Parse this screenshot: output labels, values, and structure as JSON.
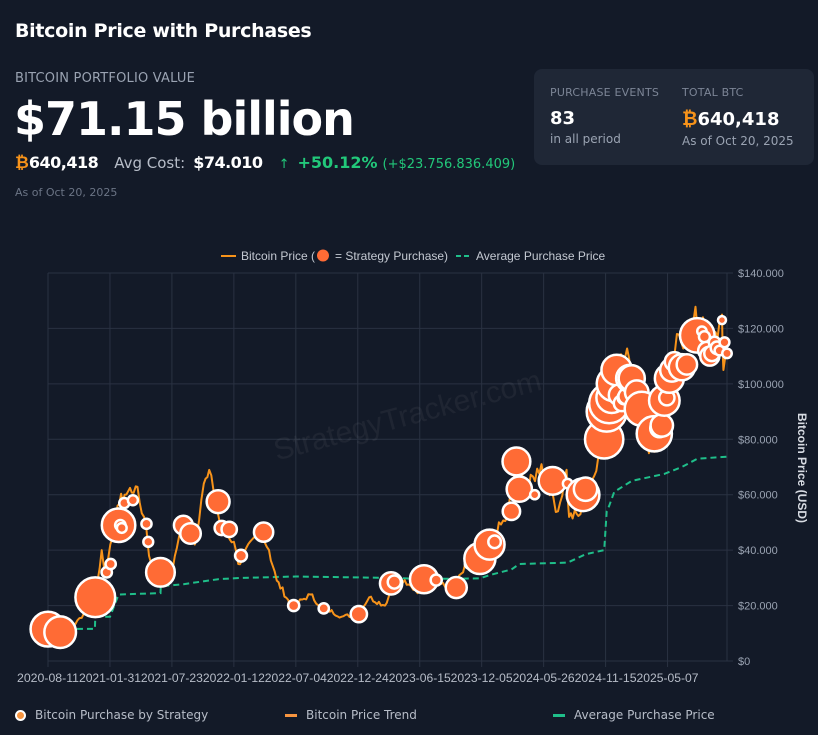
{
  "header": {
    "title": "Bitcoin Price with Purchases",
    "portfolio_label": "BITCOIN PORTFOLIO VALUE",
    "portfolio_value": "$71.15 billion",
    "btc_symbol": "₿",
    "btc_amount": "640,418",
    "avg_cost_label": "Avg Cost:",
    "avg_cost_value": "$74.010",
    "gain_arrow": "↑",
    "gain_percent": "+50.12%",
    "gain_absolute": "(+$23.756.836.409)",
    "as_of": "As of Oct 20, 2025"
  },
  "summary_card": {
    "events_label": "PURCHASE EVENTS",
    "events_value": "83",
    "events_note": "in all period",
    "total_label": "TOTAL BTC",
    "total_symbol": "₿",
    "total_value": "640,418",
    "total_note": "As of Oct 20, 2025"
  },
  "bottom_legend": {
    "purchase": "Bitcoin Purchase by Strategy",
    "trend": "Bitcoin Price Trend",
    "average": "Average Purchase Price"
  },
  "colors": {
    "background": "#131a28",
    "price_line": "#f7931a",
    "purchase_fill": "#ff6b35",
    "average_line": "#1fbf8a",
    "grid": "#2a3242",
    "positive": "#22c87a"
  },
  "chart_data": {
    "type": "line",
    "title": "",
    "legend": {
      "price": "Bitcoin Price (",
      "purchase_eq": "= Strategy Purchase)",
      "average": "Average Purchase Price",
      "placement": "top-center"
    },
    "watermark": "StrategyTracker.com",
    "xlabel": "",
    "ylabel": "Bitcoin Price (USD)",
    "x_ticks": [
      "2020-08-11",
      "2021-01-31",
      "2021-07-23",
      "2022-01-12",
      "2022-07-04",
      "2022-12-24",
      "2023-06-15",
      "2023-12-05",
      "2024-05-26",
      "2024-11-15",
      "2025-05-07"
    ],
    "x_range": [
      "2020-08-11",
      "2025-10-20"
    ],
    "y_ticks": [
      0,
      20000,
      40000,
      60000,
      80000,
      100000,
      120000,
      140000
    ],
    "y_tick_labels": [
      "$0",
      "$20.000",
      "$40.000",
      "$60.000",
      "$80.000",
      "$100.000",
      "$120.000",
      "$140.000"
    ],
    "ylim": [
      0,
      140000
    ],
    "grid": true,
    "price_series": [
      [
        "2020-08-11",
        11500
      ],
      [
        "2020-09-15",
        10500
      ],
      [
        "2020-10-20",
        12500
      ],
      [
        "2020-11-25",
        18000
      ],
      [
        "2020-12-21",
        23000
      ],
      [
        "2021-01-08",
        40000
      ],
      [
        "2021-01-20",
        31000
      ],
      [
        "2021-02-08",
        45000
      ],
      [
        "2021-02-21",
        56000
      ],
      [
        "2021-03-13",
        60000
      ],
      [
        "2021-04-13",
        63000
      ],
      [
        "2021-05-12",
        49000
      ],
      [
        "2021-05-20",
        38000
      ],
      [
        "2021-06-22",
        31000
      ],
      [
        "2021-07-20",
        30000
      ],
      [
        "2021-08-12",
        45000
      ],
      [
        "2021-09-06",
        51000
      ],
      [
        "2021-09-25",
        42000
      ],
      [
        "2021-10-20",
        64000
      ],
      [
        "2021-11-10",
        67000
      ],
      [
        "2021-12-05",
        49000
      ],
      [
        "2022-01-12",
        43000
      ],
      [
        "2022-01-24",
        35000
      ],
      [
        "2022-03-28",
        47000
      ],
      [
        "2022-04-20",
        40000
      ],
      [
        "2022-05-12",
        29000
      ],
      [
        "2022-06-13",
        22000
      ],
      [
        "2022-06-18",
        19000
      ],
      [
        "2022-08-14",
        24000
      ],
      [
        "2022-09-10",
        20000
      ],
      [
        "2022-11-09",
        16000
      ],
      [
        "2022-12-24",
        16800
      ],
      [
        "2023-01-25",
        23000
      ],
      [
        "2023-03-10",
        20000
      ],
      [
        "2023-04-14",
        30500
      ],
      [
        "2023-05-10",
        27500
      ],
      [
        "2023-06-15",
        25000
      ],
      [
        "2023-07-12",
        31000
      ],
      [
        "2023-09-11",
        25000
      ],
      [
        "2023-10-25",
        34500
      ],
      [
        "2023-12-05",
        43000
      ],
      [
        "2024-01-10",
        46000
      ],
      [
        "2024-02-15",
        52000
      ],
      [
        "2024-03-13",
        73000
      ],
      [
        "2024-04-15",
        63000
      ],
      [
        "2024-05-20",
        71000
      ],
      [
        "2024-07-05",
        54000
      ],
      [
        "2024-07-29",
        69000
      ],
      [
        "2024-08-05",
        52000
      ],
      [
        "2024-09-06",
        53000
      ],
      [
        "2024-10-15",
        67000
      ],
      [
        "2024-11-11",
        88000
      ],
      [
        "2024-11-22",
        99000
      ],
      [
        "2024-12-17",
        108000
      ],
      [
        "2025-01-20",
        109000
      ],
      [
        "2025-02-28",
        80000
      ],
      [
        "2025-04-08",
        76000
      ],
      [
        "2025-05-22",
        111000
      ],
      [
        "2025-07-14",
        122000
      ],
      [
        "2025-08-14",
        124000
      ],
      [
        "2025-09-01",
        108000
      ],
      [
        "2025-10-06",
        125000
      ],
      [
        "2025-10-10",
        105000
      ],
      [
        "2025-10-20",
        110000
      ]
    ],
    "purchases": [
      [
        "2020-08-11",
        11500,
        21454
      ],
      [
        "2020-09-14",
        10400,
        16796
      ],
      [
        "2020-12-21",
        23000,
        29646
      ],
      [
        "2021-01-22",
        32000,
        314
      ],
      [
        "2021-02-02",
        35000,
        295
      ],
      [
        "2021-02-24",
        49000,
        19452
      ],
      [
        "2021-03-01",
        49000,
        328
      ],
      [
        "2021-03-05",
        48000,
        205
      ],
      [
        "2021-03-12",
        57000,
        262
      ],
      [
        "2021-04-05",
        58000,
        253
      ],
      [
        "2021-05-13",
        49500,
        271
      ],
      [
        "2021-05-18",
        43000,
        229
      ],
      [
        "2021-06-21",
        32000,
        13005
      ],
      [
        "2021-08-24",
        49000,
        3907
      ],
      [
        "2021-09-13",
        46000,
        5050
      ],
      [
        "2021-11-29",
        57500,
        7002
      ],
      [
        "2021-12-09",
        48000,
        1434
      ],
      [
        "2021-12-30",
        47500,
        1914
      ],
      [
        "2022-02-01",
        38000,
        660
      ],
      [
        "2022-04-05",
        46500,
        4167
      ],
      [
        "2022-06-28",
        20000,
        480
      ],
      [
        "2022-09-20",
        19000,
        301
      ],
      [
        "2022-12-27",
        16900,
        2395
      ],
      [
        "2023-03-27",
        28000,
        6455
      ],
      [
        "2023-04-05",
        28500,
        1045
      ],
      [
        "2023-06-27",
        29500,
        12333
      ],
      [
        "2023-07-31",
        29200,
        467
      ],
      [
        "2023-09-25",
        26500,
        5445
      ],
      [
        "2023-11-01",
        35000,
        155
      ],
      [
        "2023-11-30",
        37000,
        16130
      ],
      [
        "2023-12-27",
        42000,
        14620
      ],
      [
        "2024-01-10",
        43000,
        850
      ],
      [
        "2024-02-26",
        54000,
        3000
      ],
      [
        "2024-03-11",
        72000,
        12000
      ],
      [
        "2024-03-19",
        62000,
        9245
      ],
      [
        "2024-05-01",
        60000,
        122
      ],
      [
        "2024-06-20",
        65000,
        11931
      ],
      [
        "2024-08-01",
        64000,
        169
      ],
      [
        "2024-09-13",
        60000,
        18300
      ],
      [
        "2024-09-20",
        62000,
        7420
      ],
      [
        "2024-11-11",
        80000,
        27200
      ],
      [
        "2024-11-18",
        90000,
        51780
      ],
      [
        "2024-11-25",
        93000,
        55500
      ],
      [
        "2024-12-02",
        95000,
        15400
      ],
      [
        "2024-12-09",
        100000,
        21550
      ],
      [
        "2024-12-16",
        105000,
        15350
      ],
      [
        "2024-12-23",
        96000,
        5262
      ],
      [
        "2024-12-30",
        93000,
        2138
      ],
      [
        "2025-01-06",
        95000,
        1070
      ],
      [
        "2025-01-13",
        95500,
        2530
      ],
      [
        "2025-01-21",
        102000,
        11000
      ],
      [
        "2025-01-27",
        102000,
        10107
      ],
      [
        "2025-02-10",
        97000,
        7633
      ],
      [
        "2025-02-24",
        91000,
        20356
      ],
      [
        "2025-03-17",
        83000,
        130
      ],
      [
        "2025-03-24",
        84000,
        6911
      ],
      [
        "2025-03-31",
        82000,
        22048
      ],
      [
        "2025-04-14",
        84000,
        3459
      ],
      [
        "2025-04-21",
        85000,
        6556
      ],
      [
        "2025-04-28",
        94000,
        15355
      ],
      [
        "2025-05-05",
        95000,
        1895
      ],
      [
        "2025-05-12",
        102000,
        13390
      ],
      [
        "2025-05-19",
        105000,
        7390
      ],
      [
        "2025-05-26",
        108000,
        4020
      ],
      [
        "2025-06-02",
        106000,
        705
      ],
      [
        "2025-06-09",
        107000,
        1045
      ],
      [
        "2025-06-16",
        106000,
        10100
      ],
      [
        "2025-06-23",
        106000,
        245
      ],
      [
        "2025-06-30",
        107000,
        4980
      ],
      [
        "2025-07-14",
        118000,
        4225
      ],
      [
        "2025-07-21",
        118000,
        6220
      ],
      [
        "2025-07-29",
        117500,
        21021
      ],
      [
        "2025-08-11",
        119000,
        155
      ],
      [
        "2025-08-18",
        117000,
        430
      ],
      [
        "2025-08-25",
        112000,
        3081
      ],
      [
        "2025-09-02",
        110000,
        4048
      ],
      [
        "2025-09-08",
        111000,
        1955
      ],
      [
        "2025-09-15",
        115000,
        525
      ],
      [
        "2025-09-22",
        113000,
        850
      ],
      [
        "2025-09-29",
        112000,
        196
      ],
      [
        "2025-10-06",
        123000,
        0
      ],
      [
        "2025-10-13",
        115000,
        220
      ],
      [
        "2025-10-20",
        111000,
        168
      ]
    ],
    "average_series": [
      [
        "2020-08-11",
        11100
      ],
      [
        "2020-09-14",
        11100
      ],
      [
        "2020-09-15",
        11600
      ],
      [
        "2020-12-20",
        11600
      ],
      [
        "2020-12-21",
        16000
      ],
      [
        "2021-01-31",
        16000
      ],
      [
        "2021-02-24",
        24000
      ],
      [
        "2021-06-21",
        24500
      ],
      [
        "2021-06-22",
        27000
      ],
      [
        "2021-08-24",
        27700
      ],
      [
        "2021-11-29",
        29500
      ],
      [
        "2022-02-01",
        30000
      ],
      [
        "2022-07-04",
        30500
      ],
      [
        "2023-03-27",
        30000
      ],
      [
        "2023-06-27",
        29600
      ],
      [
        "2023-11-30",
        29800
      ],
      [
        "2023-12-27",
        31000
      ],
      [
        "2024-02-26",
        33000
      ],
      [
        "2024-03-19",
        35000
      ],
      [
        "2024-08-01",
        35500
      ],
      [
        "2024-09-20",
        38500
      ],
      [
        "2024-11-11",
        40000
      ],
      [
        "2024-11-18",
        54000
      ],
      [
        "2024-11-25",
        56000
      ],
      [
        "2024-12-09",
        61000
      ],
      [
        "2025-01-27",
        65000
      ],
      [
        "2025-04-28",
        67500
      ],
      [
        "2025-06-16",
        70000
      ],
      [
        "2025-07-29",
        73000
      ],
      [
        "2025-10-20",
        73700
      ]
    ]
  }
}
